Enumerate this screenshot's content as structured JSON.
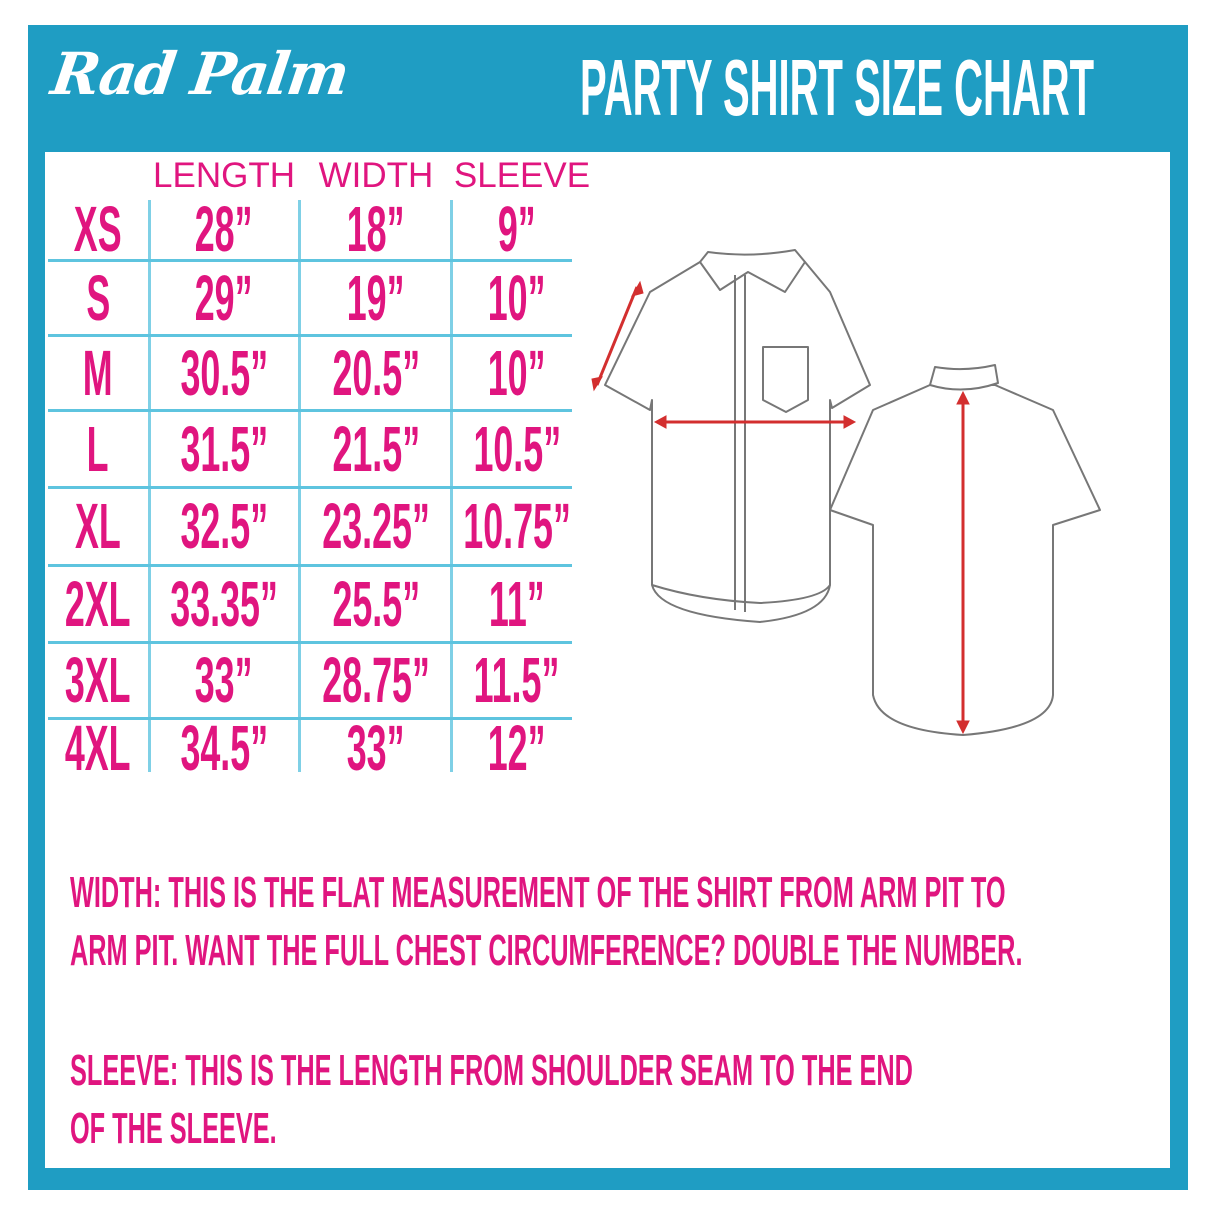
{
  "header": {
    "logo": "Rad Palm",
    "title": "PARTY SHIRT SIZE CHART"
  },
  "table": {
    "columns": [
      "LENGTH",
      "WIDTH",
      "SLEEVE"
    ],
    "rows": [
      {
        "size": "XS",
        "length": "28”",
        "width": "18”",
        "sleeve": "9”"
      },
      {
        "size": "S",
        "length": "29”",
        "width": "19”",
        "sleeve": "10”"
      },
      {
        "size": "M",
        "length": "30.5”",
        "width": "20.5”",
        "sleeve": "10”"
      },
      {
        "size": "L",
        "length": "31.5”",
        "width": "21.5”",
        "sleeve": "10.5”"
      },
      {
        "size": "XL",
        "length": "32.5”",
        "width": "23.25”",
        "sleeve": "10.75”"
      },
      {
        "size": "2XL",
        "length": "33.35”",
        "width": "25.5”",
        "sleeve": "11”"
      },
      {
        "size": "3XL",
        "length": "33”",
        "width": "28.75”",
        "sleeve": "11.5”"
      },
      {
        "size": "4XL",
        "length": "34.5”",
        "width": "33”",
        "sleeve": "12”"
      }
    ]
  },
  "notes": {
    "width_lines": [
      "WIDTH:  THIS IS THE FLAT MEASUREMENT OF THE SHIRT FROM ARM PIT TO",
      "ARM PIT.  WANT THE FULL CHEST CIRCUMFERENCE?  DOUBLE THE NUMBER."
    ],
    "sleeve_lines": [
      "SLEEVE:  THIS IS THE LENGTH FROM SHOULDER SEAM TO THE END",
      "OF THE SLEEVE."
    ]
  },
  "colors": {
    "frame": "#1f9dc3",
    "text_accent": "#e0157f",
    "grid": "#7fd0e6",
    "measure_arrow": "#d32f2f"
  },
  "illustrations": {
    "front_shirt": "shirt-front-icon",
    "back_shirt": "shirt-back-icon"
  }
}
